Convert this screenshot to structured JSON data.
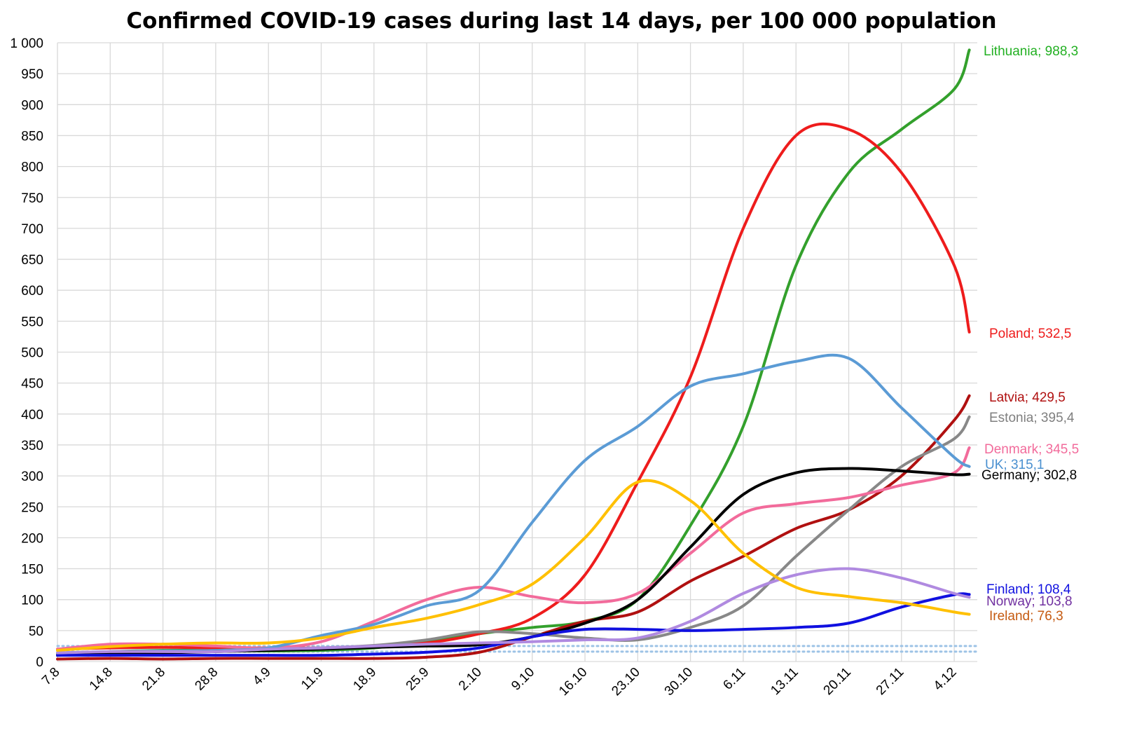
{
  "chart_data": {
    "type": "line",
    "title": "Confirmed COVID-19 cases during last 14 days, per 100 000 population",
    "xlabel": "",
    "ylabel": "",
    "ylim": [
      0,
      1000
    ],
    "yticks": [
      "0",
      "50",
      "100",
      "150",
      "200",
      "250",
      "300",
      "350",
      "400",
      "450",
      "500",
      "550",
      "600",
      "650",
      "700",
      "750",
      "800",
      "850",
      "900",
      "950",
      "1 000"
    ],
    "xticks": [
      "7.8",
      "14.8",
      "21.8",
      "28.8",
      "4.9",
      "11.9",
      "18.9",
      "25.9",
      "2.10",
      "9.10",
      "16.10",
      "23.10",
      "30.10",
      "6.11",
      "13.11",
      "20.11",
      "27.11",
      "4.12"
    ],
    "grid": true,
    "legend": "end-of-line labels",
    "reference_lines": [
      {
        "style": "dotted",
        "color": "#9DC3E6",
        "value": 25
      },
      {
        "style": "dotted",
        "color": "#9DC3E6",
        "value": 16
      }
    ],
    "x_days": [
      0,
      7,
      14,
      21,
      28,
      35,
      42,
      49,
      56,
      63,
      70,
      77,
      84,
      91,
      98,
      105,
      112,
      119,
      121
    ],
    "series": [
      {
        "name": "Lithuania",
        "label": "Lithuania; 988,3",
        "color": "#33A02C",
        "values": [
          12,
          16,
          18,
          18,
          17,
          18,
          22,
          32,
          45,
          55,
          65,
          100,
          220,
          380,
          640,
          790,
          860,
          925,
          988.3
        ]
      },
      {
        "name": "Poland",
        "label": "Poland; 532,5",
        "color": "#EE1C1C",
        "values": [
          20,
          22,
          23,
          22,
          22,
          22,
          25,
          30,
          45,
          70,
          140,
          290,
          460,
          700,
          850,
          860,
          790,
          640,
          532.5
        ]
      },
      {
        "name": "Latvia",
        "label": "Latvia; 429,5",
        "color": "#B01010",
        "values": [
          4,
          5,
          4,
          5,
          5,
          5,
          5,
          7,
          15,
          40,
          65,
          80,
          130,
          170,
          215,
          245,
          300,
          390,
          429.5
        ]
      },
      {
        "name": "Estonia",
        "label": "Estonia; 395,4",
        "color": "#888888",
        "values": [
          10,
          12,
          14,
          18,
          20,
          22,
          26,
          35,
          48,
          45,
          38,
          35,
          55,
          90,
          170,
          245,
          315,
          360,
          395.4
        ]
      },
      {
        "name": "Denmark",
        "label": "Denmark; 345,5",
        "color": "#F26B9B",
        "values": [
          20,
          28,
          28,
          25,
          22,
          32,
          65,
          100,
          120,
          105,
          95,
          110,
          175,
          240,
          255,
          265,
          285,
          305,
          345.5
        ]
      },
      {
        "name": "UK",
        "label": "UK; 315,1",
        "color": "#5B9BD5",
        "values": [
          14,
          16,
          17,
          18,
          22,
          42,
          60,
          90,
          115,
          225,
          325,
          380,
          445,
          465,
          485,
          490,
          410,
          330,
          315.1
        ]
      },
      {
        "name": "Germany",
        "label": "Germany; 302,8",
        "color": "#000000",
        "values": [
          10,
          12,
          14,
          16,
          18,
          20,
          23,
          25,
          27,
          40,
          62,
          100,
          185,
          270,
          305,
          312,
          308,
          302,
          302.8
        ]
      },
      {
        "name": "Finland",
        "label": "Finland; 108,4",
        "color": "#1010E0",
        "values": [
          10,
          10,
          10,
          10,
          10,
          10,
          12,
          15,
          22,
          40,
          52,
          52,
          50,
          52,
          55,
          62,
          88,
          108,
          108.4
        ]
      },
      {
        "name": "Norway",
        "label": "Norway; 103,8",
        "color": "#B08AE0",
        "values": [
          14,
          16,
          16,
          16,
          20,
          22,
          25,
          28,
          30,
          32,
          35,
          38,
          65,
          110,
          140,
          150,
          135,
          110,
          103.8
        ]
      },
      {
        "name": "Ireland",
        "label": "Ireland;  76,3",
        "color": "#FFC000",
        "values": [
          18,
          24,
          28,
          30,
          30,
          38,
          55,
          70,
          92,
          125,
          200,
          290,
          260,
          175,
          120,
          105,
          95,
          80,
          76.3
        ]
      }
    ]
  }
}
